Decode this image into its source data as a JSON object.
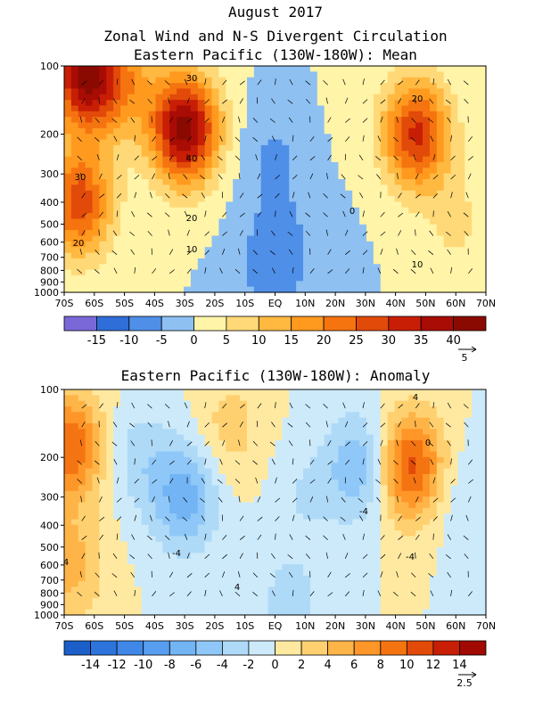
{
  "figure": {
    "title_line1": "August 2017",
    "title_line2": "Zonal Wind and N-S Divergent Circulation",
    "title_line3": "Eastern Pacific (130W-180W): Mean"
  },
  "chart_data": [
    {
      "type": "heatmap",
      "title": "Eastern Pacific (130W-180W): Mean",
      "x_ticks": [
        "70S",
        "60S",
        "50S",
        "40S",
        "30S",
        "20S",
        "10S",
        "EQ",
        "10N",
        "20N",
        "30N",
        "40N",
        "50N",
        "60N",
        "70N"
      ],
      "y_ticks": [
        "100",
        "200",
        "300",
        "400",
        "500",
        "600",
        "700",
        "800",
        "900",
        "1000"
      ],
      "y_values": [
        100,
        200,
        300,
        400,
        500,
        600,
        700,
        800,
        900,
        1000
      ],
      "y_scale": "log",
      "colorbar_levels": [
        -20,
        -15,
        -10,
        -5,
        0,
        5,
        10,
        15,
        20,
        25,
        30,
        35,
        40,
        45
      ],
      "colorbar_labels": [
        "-15",
        "-10",
        "-5",
        "0",
        "5",
        "10",
        "15",
        "20",
        "25",
        "30",
        "35",
        "40"
      ],
      "colors": [
        "#7b68d8",
        "#2f6ed8",
        "#4f8fe8",
        "#8ec0f2",
        "#fff4a8",
        "#ffd978",
        "#ffb840",
        "#ff9a1f",
        "#f57410",
        "#e24a0a",
        "#c81e06",
        "#a80c04",
        "#8a0a02"
      ],
      "contour_labels": [
        "30",
        "40",
        "20",
        "10",
        "30",
        "20",
        "20",
        "0",
        "10"
      ],
      "vector_reference": "5",
      "centers": [
        {
          "lat": -63,
          "p": 110,
          "value": 40
        },
        {
          "lat": -65,
          "p": 400,
          "value": 28
        },
        {
          "lat": -30,
          "p": 190,
          "value": 42
        },
        {
          "lat": -50,
          "p": 120,
          "value": 14
        },
        {
          "lat": 0,
          "p": 260,
          "value": -6
        },
        {
          "lat": -1,
          "p": 740,
          "value": -9
        },
        {
          "lat": 27,
          "p": 160,
          "value": 1
        },
        {
          "lat": 47,
          "p": 200,
          "value": 31
        },
        {
          "lat": 60,
          "p": 500,
          "value": 6
        },
        {
          "lat": 12,
          "p": 600,
          "value": -2
        }
      ]
    },
    {
      "type": "heatmap",
      "title": "Eastern Pacific (130W-180W): Anomaly",
      "x_ticks": [
        "70S",
        "60S",
        "50S",
        "40S",
        "30S",
        "20S",
        "10S",
        "EQ",
        "10N",
        "20N",
        "30N",
        "40N",
        "50N",
        "60N",
        "70N"
      ],
      "y_ticks": [
        "100",
        "200",
        "300",
        "400",
        "500",
        "600",
        "700",
        "800",
        "900",
        "1000"
      ],
      "y_values": [
        100,
        200,
        300,
        400,
        500,
        600,
        700,
        800,
        900,
        1000
      ],
      "y_scale": "log",
      "colorbar_levels": [
        -16,
        -14,
        -12,
        -10,
        -8,
        -6,
        -4,
        -2,
        0,
        2,
        4,
        6,
        8,
        10,
        12,
        14,
        16
      ],
      "colorbar_labels": [
        "-14",
        "-12",
        "-10",
        "-8",
        "-6",
        "-4",
        "-2",
        "0",
        "2",
        "4",
        "6",
        "8",
        "10",
        "12",
        "14"
      ],
      "colors": [
        "#1d5fc8",
        "#2c74dc",
        "#3f88e8",
        "#579ef0",
        "#72b4f4",
        "#8fc8f8",
        "#aedaf8",
        "#cdeafa",
        "#ffe9a0",
        "#ffd070",
        "#ffb448",
        "#ff9628",
        "#f57412",
        "#e24a0a",
        "#c81e06",
        "#a00a02"
      ],
      "contour_labels": [
        "4",
        "-4",
        "-4",
        "4",
        "-4",
        "4",
        "0"
      ],
      "vector_reference": "2.5",
      "centers": [
        {
          "lat": -68,
          "p": 180,
          "value": 10
        },
        {
          "lat": -68,
          "p": 600,
          "value": 5
        },
        {
          "lat": -30,
          "p": 300,
          "value": -7
        },
        {
          "lat": -45,
          "p": 200,
          "value": -3
        },
        {
          "lat": -15,
          "p": 150,
          "value": 3
        },
        {
          "lat": 28,
          "p": 220,
          "value": -6
        },
        {
          "lat": 45,
          "p": 220,
          "value": 11
        },
        {
          "lat": 10,
          "p": 300,
          "value": -2
        },
        {
          "lat": 5,
          "p": 900,
          "value": -3
        },
        {
          "lat": 62,
          "p": 300,
          "value": -2
        }
      ]
    }
  ]
}
